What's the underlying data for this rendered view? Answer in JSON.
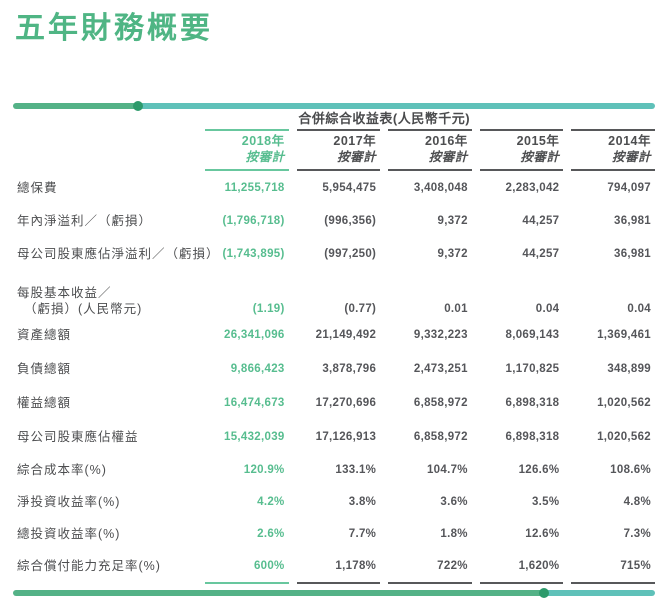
{
  "page_title": "五年財務概要",
  "table": {
    "title": "合併綜合收益表(人民幣千元)",
    "columns": [
      {
        "year": "2018年",
        "basis": "按審計",
        "highlight": true
      },
      {
        "year": "2017年",
        "basis": "按審計",
        "highlight": false
      },
      {
        "year": "2016年",
        "basis": "按審計",
        "highlight": false
      },
      {
        "year": "2015年",
        "basis": "按審計",
        "highlight": false
      },
      {
        "year": "2014年",
        "basis": "按審計",
        "highlight": false
      }
    ],
    "rows": [
      {
        "label": "總保費",
        "values": [
          "11,255,718",
          "5,954,475",
          "3,408,048",
          "2,283,042",
          "794,097"
        ]
      },
      {
        "label": "年內淨溢利／（虧損）",
        "values": [
          "(1,796,718)",
          "(996,356)",
          "9,372",
          "44,257",
          "36,981"
        ]
      },
      {
        "label": "母公司股東應佔淨溢利／（虧損）",
        "values": [
          "(1,743,895)",
          "(997,250)",
          "9,372",
          "44,257",
          "36,981"
        ]
      },
      {
        "label": "每股基本收益／",
        "label2": "（虧損）(人民幣元)",
        "values": [
          "(1.19)",
          "(0.77)",
          "0.01",
          "0.04",
          "0.04"
        ]
      },
      {
        "label": "資產總額",
        "values": [
          "26,341,096",
          "21,149,492",
          "9,332,223",
          "8,069,143",
          "1,369,461"
        ]
      },
      {
        "label": "負債總額",
        "values": [
          "9,866,423",
          "3,878,796",
          "2,473,251",
          "1,170,825",
          "348,899"
        ]
      },
      {
        "label": "權益總額",
        "values": [
          "16,474,673",
          "17,270,696",
          "6,858,972",
          "6,898,318",
          "1,020,562"
        ]
      },
      {
        "label": "母公司股東應佔權益",
        "values": [
          "15,432,039",
          "17,126,913",
          "6,858,972",
          "6,898,318",
          "1,020,562"
        ]
      },
      {
        "label": "綜合成本率(%)",
        "values": [
          "120.9%",
          "133.1%",
          "104.7%",
          "126.6%",
          "108.6%"
        ]
      },
      {
        "label": "淨投資收益率(%)",
        "values": [
          "4.2%",
          "3.8%",
          "3.6%",
          "3.5%",
          "4.8%"
        ]
      },
      {
        "label": "總投資收益率(%)",
        "values": [
          "2.6%",
          "7.7%",
          "1.8%",
          "12.6%",
          "7.3%"
        ]
      },
      {
        "label": "綜合償付能力充足率(%)",
        "values": [
          "600%",
          "1,178%",
          "722%",
          "1,620%",
          "715%"
        ]
      }
    ]
  },
  "colors": {
    "title_green": "#4fb584",
    "highlight_green": "#57bd8f",
    "rule_green": "#68c79e",
    "bar_green": "#54b287",
    "bar_teal": "#5fc1b9",
    "bar_dot": "#2d9a6b",
    "dark_text": "#4d4e50",
    "number_text": "#55565a",
    "rule_dark": "#57585a"
  }
}
